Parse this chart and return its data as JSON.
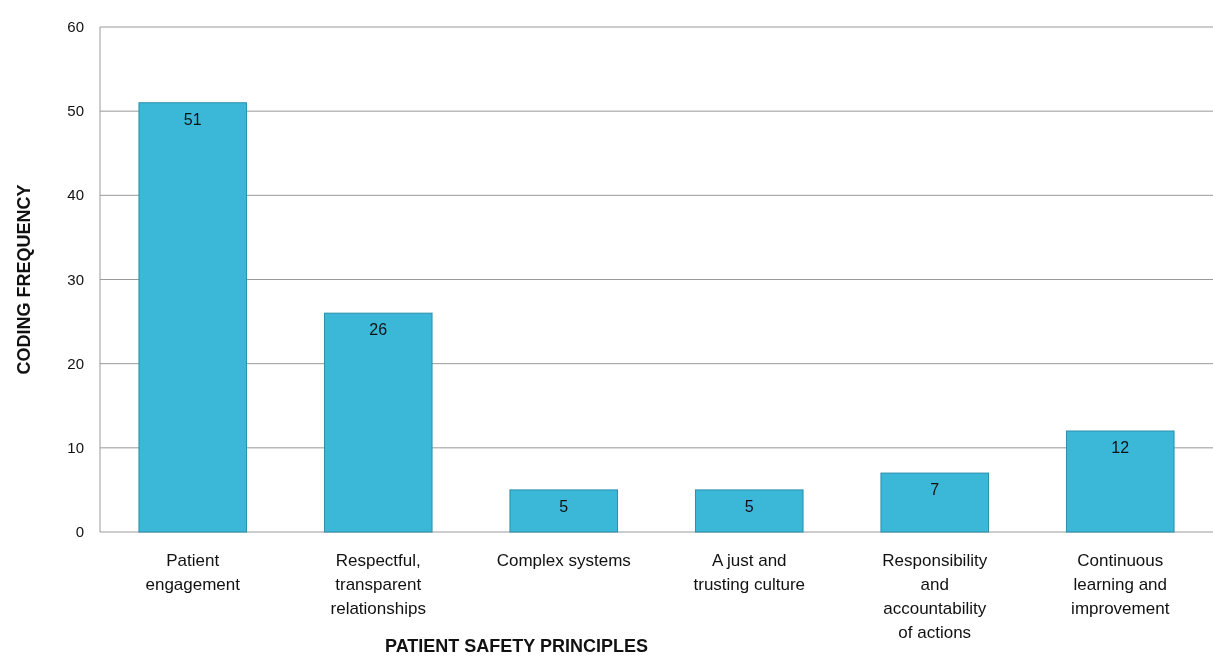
{
  "chart_data": {
    "type": "bar",
    "xlabel": "PATIENT SAFETY PRINCIPLES",
    "ylabel": "CODING FREQUENCY",
    "categories": [
      "Patient engagement",
      "Respectful, transparent relationships",
      "Complex systems",
      "A just and trusting culture",
      "Responsibility and accountability of actions",
      "Continuous learning and improvement"
    ],
    "values": [
      51,
      26,
      5,
      5,
      7,
      12
    ],
    "color": "#3bb8d8",
    "ylim": [
      0,
      60
    ],
    "yticks": [
      0,
      10,
      20,
      30,
      40,
      50,
      60
    ],
    "grid": "y",
    "data_labels": true
  }
}
